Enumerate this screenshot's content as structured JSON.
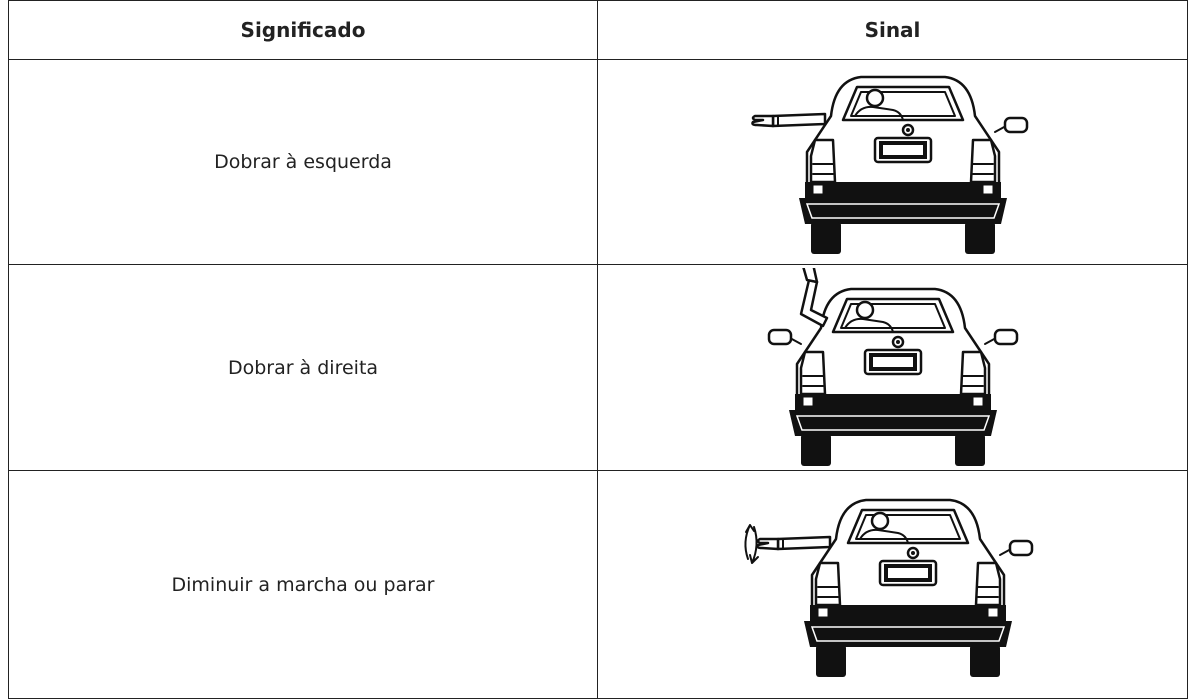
{
  "table": {
    "headers": [
      "Significado",
      "Sinal"
    ],
    "rows": [
      [
        "Dobrar à esquerda"
      ],
      [
        "Dobrar à direita"
      ],
      [
        "Diminuir a marcha ou parar"
      ]
    ]
  }
}
